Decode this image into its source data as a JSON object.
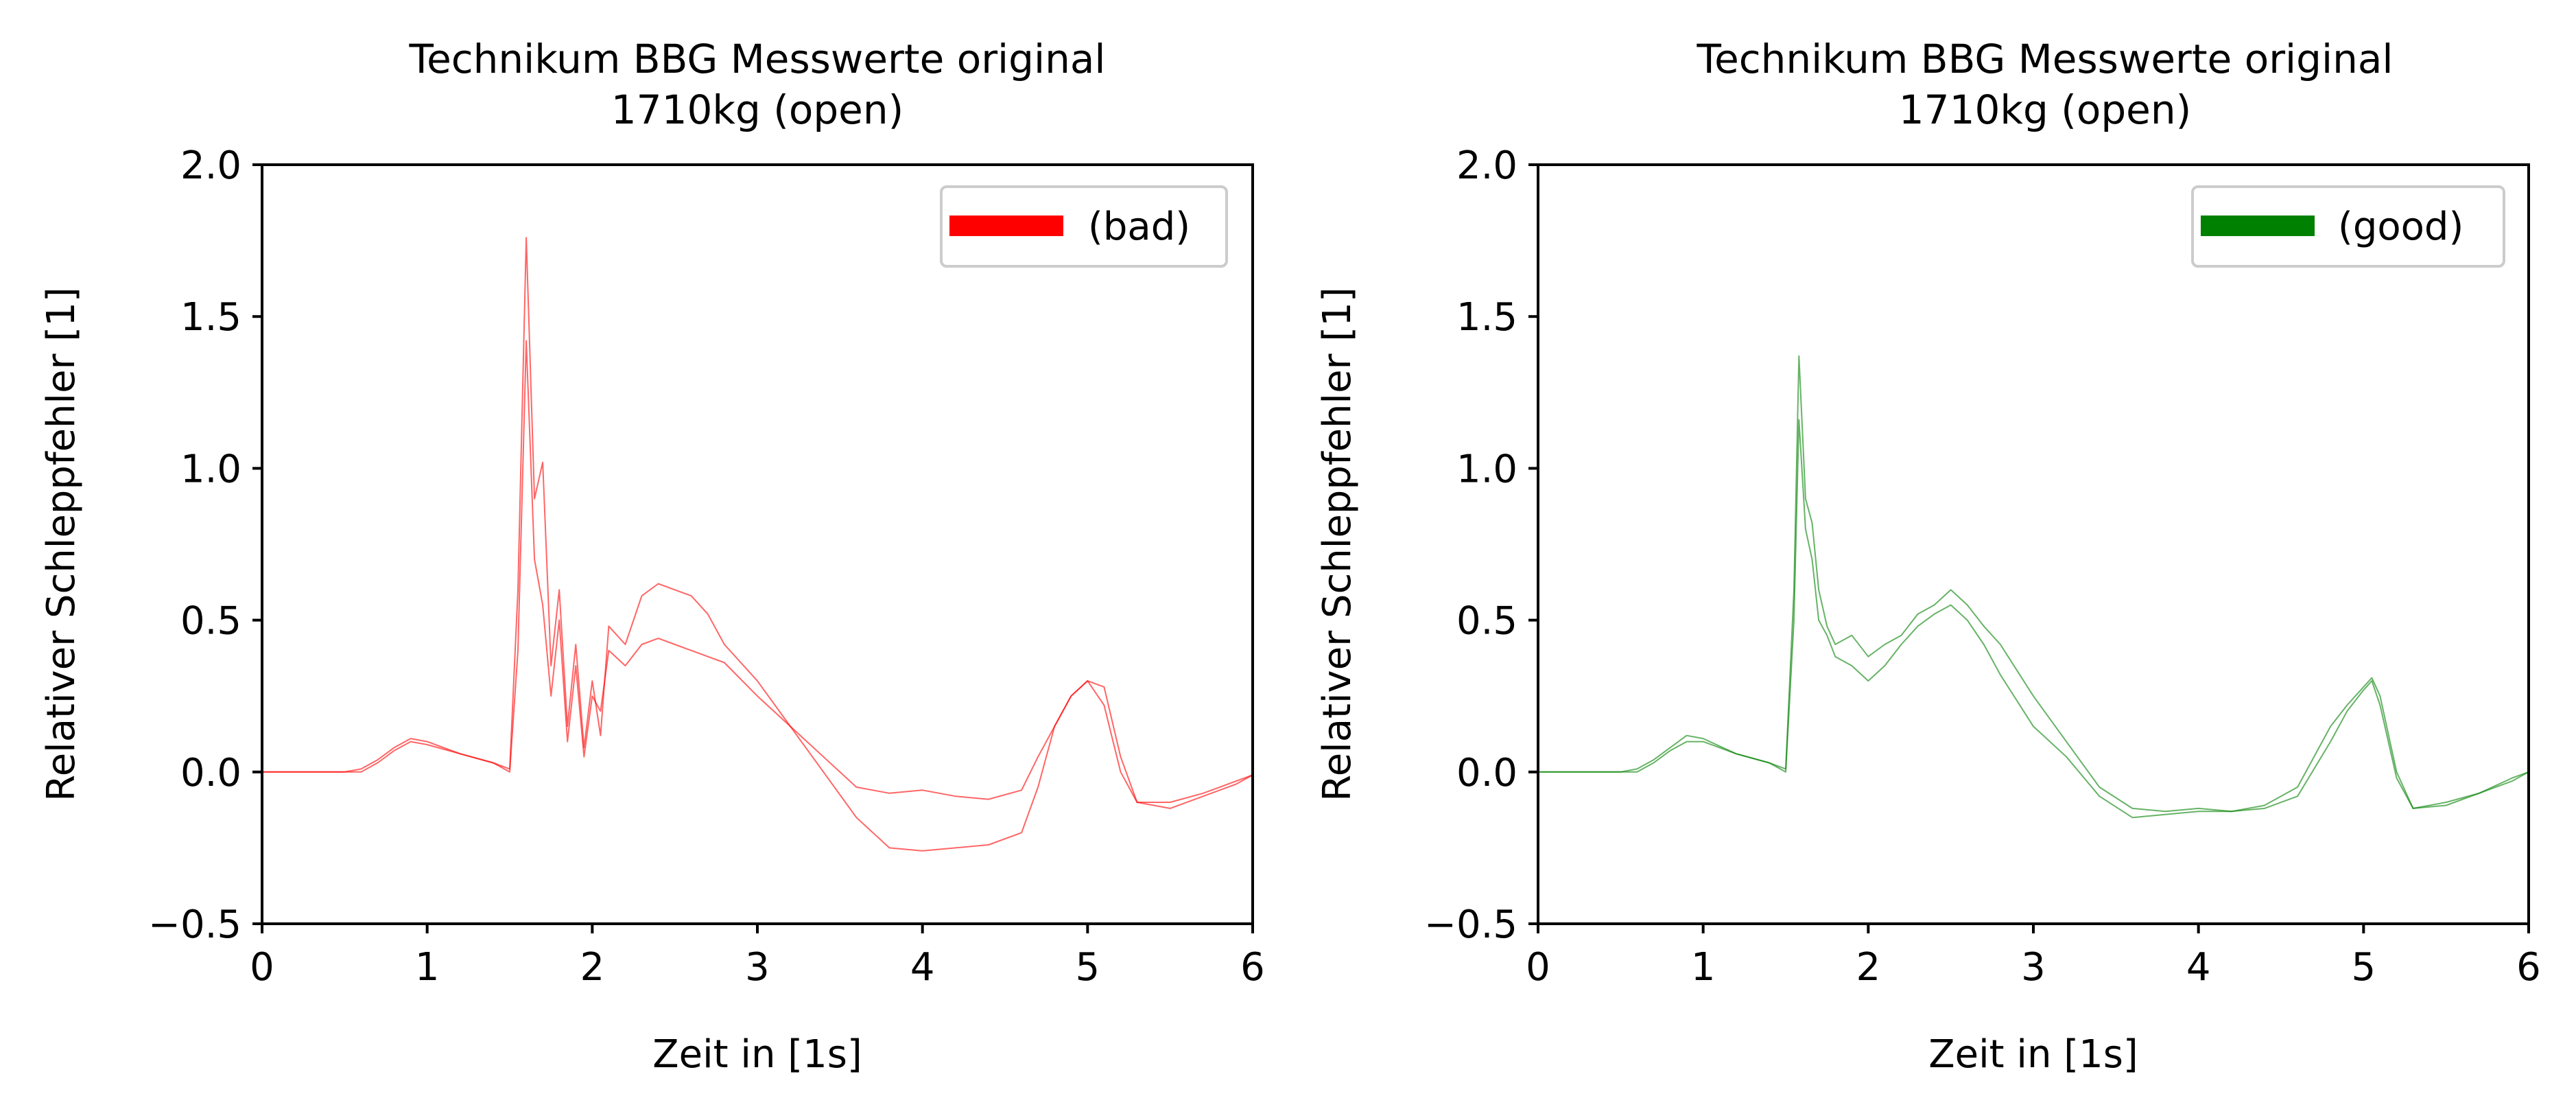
{
  "chart_data": [
    {
      "type": "line",
      "title": "Technikum BBG Messwerte original",
      "subtitle": "1710kg (open)",
      "xlabel": "Zeit in [1s]",
      "ylabel": "Relativer Schleppfehler [1]",
      "xlim": [
        0,
        6
      ],
      "ylim": [
        -0.5,
        2.0
      ],
      "xticks": [
        "0",
        "1",
        "2",
        "3",
        "4",
        "5",
        "6"
      ],
      "yticks": [
        "−0.5",
        "0.0",
        "0.5",
        "1.0",
        "1.5",
        "2.0"
      ],
      "grid": false,
      "legend": {
        "placement": "top-right",
        "label": "(bad)"
      },
      "color": "#ff0000",
      "series": [
        {
          "x": [
            0,
            0.5,
            0.6,
            0.7,
            0.8,
            0.9,
            1.0,
            1.2,
            1.4,
            1.5,
            1.55,
            1.6,
            1.65,
            1.7,
            1.75,
            1.8,
            1.85,
            1.9,
            1.95,
            2.0,
            2.05,
            2.1,
            2.2,
            2.3,
            2.4,
            2.5,
            2.6,
            2.7,
            2.8,
            3.0,
            3.2,
            3.4,
            3.6,
            3.8,
            4.0,
            4.2,
            4.4,
            4.6,
            4.7,
            4.8,
            4.9,
            5.0,
            5.1,
            5.2,
            5.3,
            5.5,
            5.7,
            5.9,
            6.0
          ],
          "y": [
            0,
            0,
            0.01,
            0.04,
            0.08,
            0.11,
            0.1,
            0.06,
            0.03,
            0.01,
            0.6,
            1.76,
            0.9,
            1.02,
            0.35,
            0.6,
            0.15,
            0.42,
            0.08,
            0.3,
            0.12,
            0.48,
            0.42,
            0.58,
            0.62,
            0.6,
            0.58,
            0.52,
            0.42,
            0.3,
            0.15,
            0.05,
            -0.05,
            -0.07,
            -0.06,
            -0.08,
            -0.09,
            -0.06,
            0.05,
            0.15,
            0.25,
            0.3,
            0.22,
            0.0,
            -0.1,
            -0.1,
            -0.07,
            -0.03,
            -0.01
          ]
        },
        {
          "x": [
            0,
            0.5,
            0.6,
            0.7,
            0.8,
            0.9,
            1.0,
            1.2,
            1.4,
            1.5,
            1.55,
            1.6,
            1.65,
            1.7,
            1.75,
            1.8,
            1.85,
            1.9,
            1.95,
            2.0,
            2.05,
            2.1,
            2.2,
            2.3,
            2.4,
            2.5,
            2.6,
            2.7,
            2.8,
            3.0,
            3.2,
            3.4,
            3.6,
            3.8,
            4.0,
            4.2,
            4.4,
            4.6,
            4.7,
            4.8,
            4.9,
            5.0,
            5.1,
            5.2,
            5.3,
            5.5,
            5.7,
            5.9,
            6.0
          ],
          "y": [
            0,
            0,
            0.0,
            0.03,
            0.07,
            0.1,
            0.09,
            0.06,
            0.03,
            0.0,
            0.4,
            1.42,
            0.7,
            0.55,
            0.25,
            0.5,
            0.1,
            0.35,
            0.05,
            0.25,
            0.2,
            0.4,
            0.35,
            0.42,
            0.44,
            0.42,
            0.4,
            0.38,
            0.36,
            0.25,
            0.15,
            0.0,
            -0.15,
            -0.25,
            -0.26,
            -0.25,
            -0.24,
            -0.2,
            -0.05,
            0.15,
            0.25,
            0.3,
            0.28,
            0.05,
            -0.1,
            -0.12,
            -0.08,
            -0.04,
            -0.01
          ]
        }
      ]
    },
    {
      "type": "line",
      "title": "Technikum BBG Messwerte original",
      "subtitle": "1710kg (open)",
      "xlabel": "Zeit in [1s]",
      "ylabel": "Relativer Schleppfehler [1]",
      "xlim": [
        0,
        6
      ],
      "ylim": [
        -0.5,
        2.0
      ],
      "xticks": [
        "0",
        "1",
        "2",
        "3",
        "4",
        "5",
        "6"
      ],
      "yticks": [
        "−0.5",
        "0.0",
        "0.5",
        "1.0",
        "1.5",
        "2.0"
      ],
      "grid": false,
      "legend": {
        "placement": "top-right",
        "label": "(good)"
      },
      "color": "#008000",
      "series": [
        {
          "x": [
            0,
            0.5,
            0.6,
            0.7,
            0.8,
            0.9,
            1.0,
            1.2,
            1.4,
            1.5,
            1.55,
            1.58,
            1.62,
            1.66,
            1.7,
            1.75,
            1.8,
            1.9,
            2.0,
            2.1,
            2.2,
            2.3,
            2.4,
            2.5,
            2.6,
            2.7,
            2.8,
            3.0,
            3.2,
            3.4,
            3.6,
            3.8,
            4.0,
            4.2,
            4.4,
            4.6,
            4.8,
            4.9,
            5.0,
            5.05,
            5.1,
            5.2,
            5.3,
            5.5,
            5.7,
            5.9,
            6.0
          ],
          "y": [
            0,
            0,
            0.01,
            0.04,
            0.08,
            0.12,
            0.11,
            0.06,
            0.03,
            0.01,
            0.6,
            1.37,
            0.9,
            0.82,
            0.6,
            0.48,
            0.42,
            0.45,
            0.38,
            0.42,
            0.45,
            0.52,
            0.55,
            0.6,
            0.55,
            0.48,
            0.42,
            0.25,
            0.1,
            -0.05,
            -0.12,
            -0.13,
            -0.12,
            -0.13,
            -0.11,
            -0.05,
            0.15,
            0.22,
            0.28,
            0.31,
            0.25,
            0.0,
            -0.12,
            -0.1,
            -0.07,
            -0.02,
            0.0
          ]
        },
        {
          "x": [
            0,
            0.5,
            0.6,
            0.7,
            0.8,
            0.9,
            1.0,
            1.2,
            1.4,
            1.5,
            1.55,
            1.58,
            1.62,
            1.66,
            1.7,
            1.75,
            1.8,
            1.9,
            2.0,
            2.1,
            2.2,
            2.3,
            2.4,
            2.5,
            2.6,
            2.7,
            2.8,
            3.0,
            3.2,
            3.4,
            3.6,
            3.8,
            4.0,
            4.2,
            4.4,
            4.6,
            4.8,
            4.9,
            5.0,
            5.05,
            5.1,
            5.2,
            5.3,
            5.5,
            5.7,
            5.9,
            6.0
          ],
          "y": [
            0,
            0,
            0.0,
            0.03,
            0.07,
            0.1,
            0.1,
            0.06,
            0.03,
            0.0,
            0.5,
            1.16,
            0.8,
            0.7,
            0.5,
            0.45,
            0.38,
            0.35,
            0.3,
            0.35,
            0.42,
            0.48,
            0.52,
            0.55,
            0.5,
            0.42,
            0.32,
            0.15,
            0.05,
            -0.08,
            -0.15,
            -0.14,
            -0.13,
            -0.13,
            -0.12,
            -0.08,
            0.1,
            0.2,
            0.27,
            0.3,
            0.22,
            -0.02,
            -0.12,
            -0.11,
            -0.07,
            -0.03,
            0.0
          ]
        }
      ]
    }
  ]
}
